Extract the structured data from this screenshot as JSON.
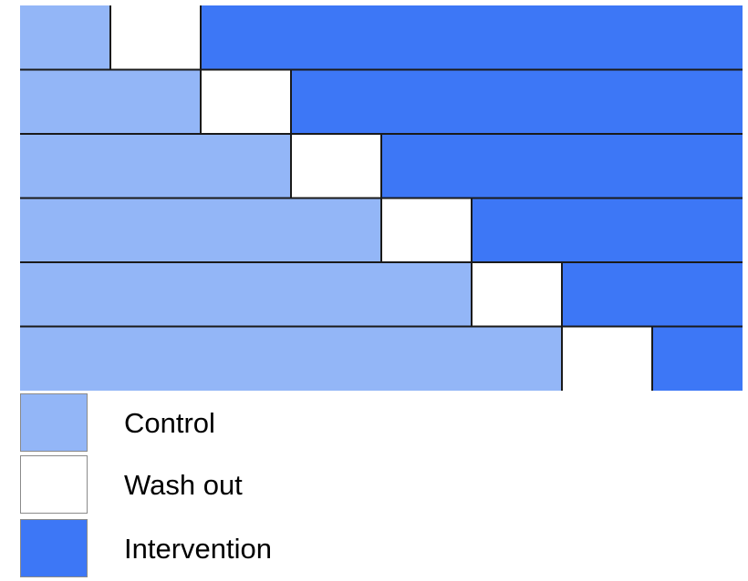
{
  "phases": {
    "control": {
      "label": "Control",
      "color": "#93b6f7"
    },
    "washout": {
      "label": "Wash out",
      "color": "#ffffff"
    },
    "intervention": {
      "label": "Intervention",
      "color": "#3d77f6"
    }
  },
  "total_periods": 8,
  "rows": [
    {
      "control": 1,
      "washout": 1,
      "intervention": 6
    },
    {
      "control": 2,
      "washout": 1,
      "intervention": 5
    },
    {
      "control": 3,
      "washout": 1,
      "intervention": 4
    },
    {
      "control": 4,
      "washout": 1,
      "intervention": 3
    },
    {
      "control": 5,
      "washout": 1,
      "intervention": 2
    },
    {
      "control": 6,
      "washout": 1,
      "intervention": 1
    }
  ],
  "legend": [
    {
      "key": "control",
      "label": "Control"
    },
    {
      "key": "washout",
      "label": "Wash out"
    },
    {
      "key": "intervention",
      "label": "Intervention"
    }
  ]
}
